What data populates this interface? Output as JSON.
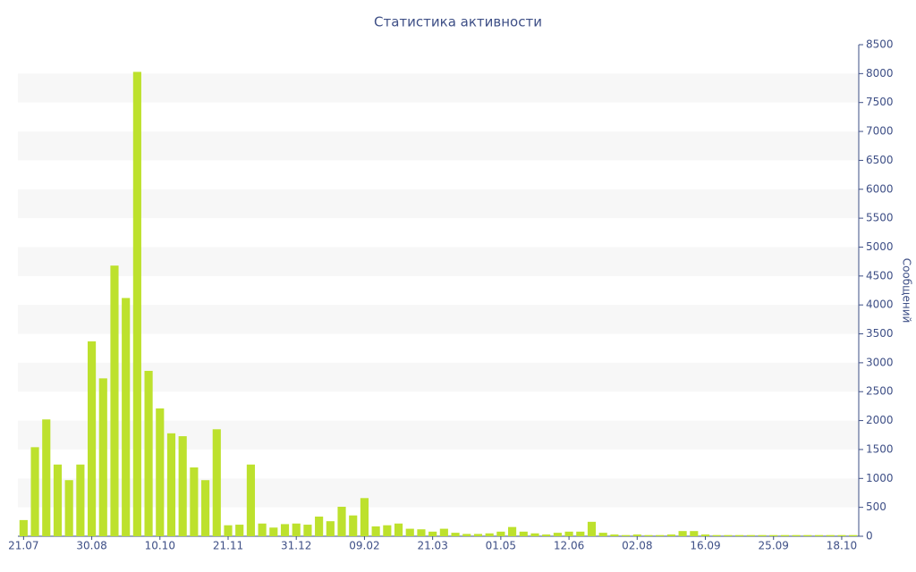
{
  "chart_data": {
    "type": "bar",
    "title": "Статистика активности",
    "y_label": "Сообщений",
    "categories": [
      "21.07",
      null,
      null,
      null,
      null,
      null,
      "30.08",
      null,
      null,
      null,
      null,
      null,
      "10.10",
      null,
      null,
      null,
      null,
      null,
      "21.11",
      null,
      null,
      null,
      null,
      null,
      "31.12",
      null,
      null,
      null,
      null,
      null,
      "09.02",
      null,
      null,
      null,
      null,
      null,
      "21.03",
      null,
      null,
      null,
      null,
      null,
      "01.05",
      null,
      null,
      null,
      null,
      null,
      "12.06",
      null,
      null,
      null,
      null,
      null,
      "02.08",
      null,
      null,
      null,
      null,
      null,
      "16.09",
      null,
      null,
      null,
      null,
      null,
      "25.09",
      null,
      null,
      null,
      null,
      null,
      "18.10",
      null
    ],
    "values": [
      280,
      1540,
      2020,
      1240,
      970,
      1240,
      3370,
      2730,
      4680,
      4120,
      8030,
      2860,
      2210,
      1780,
      1730,
      1190,
      970,
      1850,
      190,
      200,
      1240,
      220,
      150,
      210,
      220,
      200,
      340,
      260,
      510,
      360,
      660,
      170,
      190,
      220,
      130,
      120,
      80,
      130,
      60,
      40,
      40,
      50,
      80,
      160,
      80,
      50,
      30,
      60,
      80,
      80,
      250,
      60,
      30,
      20,
      30,
      20,
      20,
      30,
      90,
      90,
      30,
      20,
      20,
      20,
      20,
      20,
      20,
      20,
      20,
      20,
      20,
      20,
      20,
      20
    ],
    "color": "#bde12d",
    "ylim": [
      0,
      8500
    ],
    "yticks": [
      0,
      500,
      1000,
      1500,
      2000,
      2500,
      3000,
      3500,
      4000,
      4500,
      5000,
      5500,
      6000,
      6500,
      7000,
      7500,
      8000,
      8500
    ],
    "grid": true,
    "y_axis_side": "right"
  }
}
